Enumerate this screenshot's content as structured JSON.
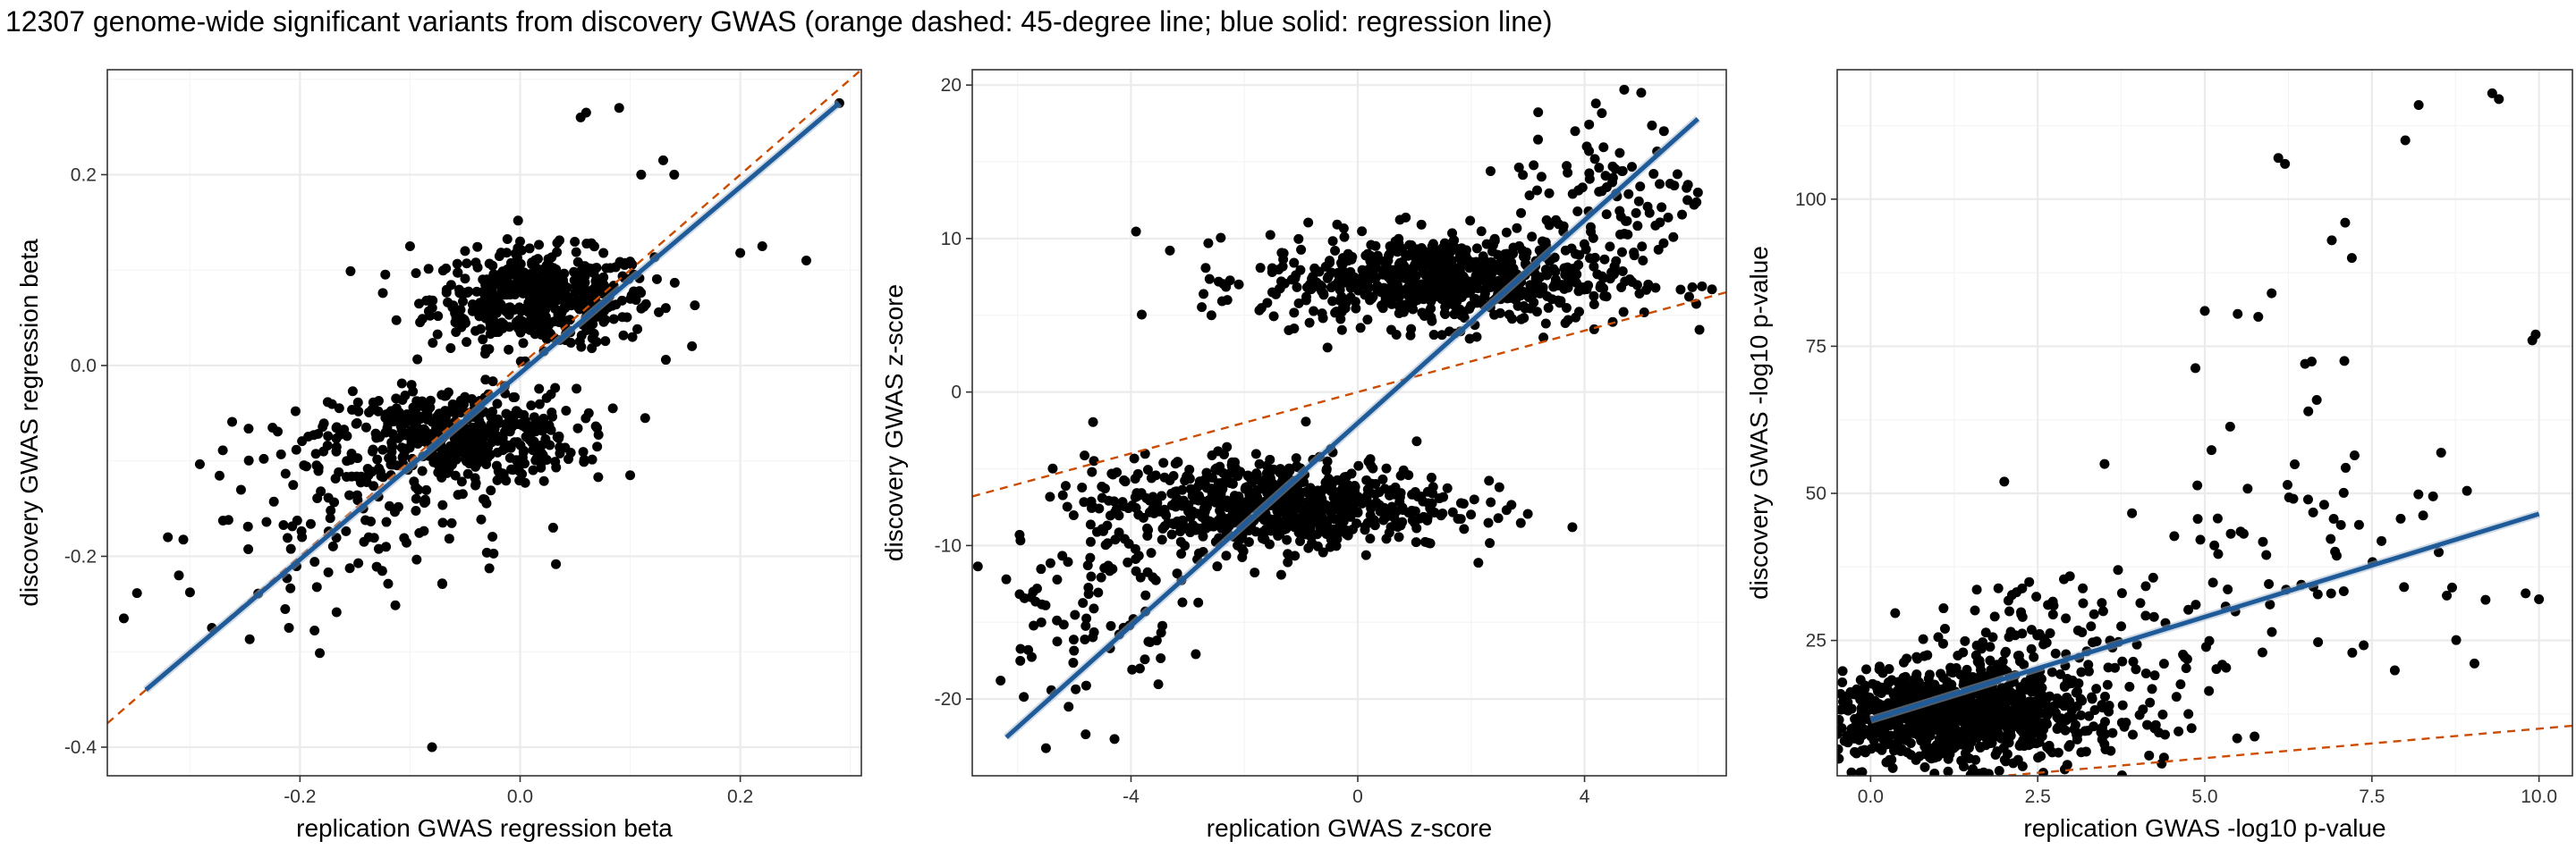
{
  "title": "12307 genome-wide significant variants from discovery GWAS (orange dashed: 45-degree line; blue solid: regression line)",
  "colors": {
    "points": "#000000",
    "reference_line": "#cc4c02",
    "regression_line": "#1f5a99",
    "grid_major": "#ebebeb",
    "grid_minor": "#f4f4f4",
    "panel_border": "#333333"
  },
  "chart_data": [
    {
      "type": "scatter",
      "xlabel": "replication GWAS regression beta",
      "ylabel": "discovery GWAS regression beta",
      "xlim": [
        -0.375,
        0.31
      ],
      "ylim": [
        -0.43,
        0.31
      ],
      "xticks": [
        -0.2,
        0.0,
        0.2
      ],
      "xtick_labels": [
        "-0.2",
        "0.0",
        "0.2"
      ],
      "yticks": [
        -0.4,
        -0.2,
        0.0,
        0.2
      ],
      "ytick_labels": [
        "-0.4",
        "-0.2",
        "0.0",
        "0.2"
      ],
      "grid": true,
      "reference_line": {
        "slope": 1,
        "intercept": 0
      },
      "regression_line": {
        "x": [
          -0.34,
          0.29
        ],
        "y": [
          -0.34,
          0.275
        ]
      },
      "clusters": [
        {
          "cx": 0.02,
          "cy": 0.07,
          "sx": 0.05,
          "sy": 0.025,
          "n": 500
        },
        {
          "cx": -0.06,
          "cy": -0.075,
          "sx": 0.055,
          "sy": 0.025,
          "n": 500
        },
        {
          "cx": -0.15,
          "cy": -0.16,
          "sx": 0.07,
          "sy": 0.045,
          "n": 120
        }
      ],
      "points": [
        [
          0.06,
          0.265
        ],
        [
          0.09,
          0.27
        ],
        [
          0.055,
          0.26
        ],
        [
          0.13,
          0.215
        ],
        [
          0.14,
          0.2
        ],
        [
          0.11,
          0.2
        ],
        [
          0.26,
          0.11
        ],
        [
          0.22,
          0.125
        ],
        [
          0.2,
          0.118
        ],
        [
          0.29,
          0.275
        ],
        [
          -0.36,
          -0.265
        ],
        [
          -0.31,
          -0.22
        ],
        [
          -0.32,
          -0.18
        ],
        [
          -0.28,
          -0.275
        ],
        [
          -0.21,
          -0.275
        ],
        [
          -0.08,
          -0.4
        ],
        [
          0.1,
          -0.115
        ],
        [
          0.07,
          -0.085
        ],
        [
          0.03,
          -0.17
        ],
        [
          -0.1,
          0.125
        ],
        [
          -0.05,
          0.12
        ],
        [
          0.0,
          0.13
        ]
      ]
    },
    {
      "type": "scatter",
      "xlabel": "replication GWAS z-score",
      "ylabel": "discovery GWAS z-score",
      "xlim": [
        -6.8,
        6.5
      ],
      "ylim": [
        -25,
        21
      ],
      "xticks": [
        -4,
        0,
        4
      ],
      "xtick_labels": [
        "-4",
        "0",
        "4"
      ],
      "yticks": [
        -20,
        -10,
        0,
        10,
        20
      ],
      "ytick_labels": [
        "-20",
        "-10",
        "0",
        "10",
        "20"
      ],
      "grid": true,
      "reference_line": {
        "slope": 1,
        "intercept": 0
      },
      "regression_line": {
        "x": [
          -6.2,
          6.0
        ],
        "y": [
          -22.5,
          17.8
        ]
      },
      "clusters": [
        {
          "cx": 1.5,
          "cy": 7.3,
          "sx": 1.6,
          "sy": 1.5,
          "n": 700
        },
        {
          "cx": -1.5,
          "cy": -7.3,
          "sx": 1.6,
          "sy": 1.5,
          "n": 700
        },
        {
          "cx": -4.8,
          "cy": -13.5,
          "sx": 0.8,
          "sy": 3.0,
          "n": 90
        },
        {
          "cx": 4.5,
          "cy": 13.0,
          "sx": 0.9,
          "sy": 2.5,
          "n": 90
        }
      ],
      "points": [
        [
          -6.3,
          -18.8
        ],
        [
          -6.2,
          -12.2
        ],
        [
          -5.5,
          -23.2
        ],
        [
          -4.8,
          -22.3
        ],
        [
          -5.1,
          -20.5
        ],
        [
          4.2,
          18.8
        ],
        [
          4.7,
          19.7
        ],
        [
          5.0,
          19.5
        ],
        [
          6.0,
          13.0
        ],
        [
          5.8,
          13.3
        ],
        [
          5.4,
          17.0
        ],
        [
          -2.3,
          6.0
        ]
      ]
    },
    {
      "type": "scatter",
      "xlabel": "replication GWAS -log10 p-value",
      "ylabel": "discovery GWAS -log10 p-value",
      "xlim": [
        -0.5,
        10.5
      ],
      "ylim": [
        2,
        122
      ],
      "xticks": [
        0.0,
        2.5,
        5.0,
        7.5,
        10.0
      ],
      "xtick_labels": [
        "0.0",
        "2.5",
        "5.0",
        "7.5",
        "10.0"
      ],
      "yticks": [
        25,
        50,
        75,
        100
      ],
      "ytick_labels": [
        "25",
        "50",
        "75",
        "100"
      ],
      "grid": true,
      "reference_line": {
        "slope": 1,
        "intercept": 0
      },
      "regression_line": {
        "x": [
          0.0,
          10.0
        ],
        "y": [
          11.5,
          46.5
        ]
      },
      "clusters": [
        {
          "cx": 1.2,
          "cy": 12.0,
          "sx": 1.0,
          "sy": 4.0,
          "n": 900
        },
        {
          "cx": 3.0,
          "cy": 20.0,
          "sx": 1.2,
          "sy": 8.0,
          "n": 200
        },
        {
          "cx": 6.5,
          "cy": 45.0,
          "sx": 1.2,
          "sy": 15.0,
          "n": 70
        }
      ],
      "points": [
        [
          9.3,
          118
        ],
        [
          9.4,
          117
        ],
        [
          8.2,
          116
        ],
        [
          8.0,
          110
        ],
        [
          6.1,
          107
        ],
        [
          6.2,
          106
        ],
        [
          7.1,
          96
        ],
        [
          6.9,
          93
        ],
        [
          7.2,
          90
        ],
        [
          9.95,
          77
        ],
        [
          9.9,
          76
        ],
        [
          9.8,
          33
        ],
        [
          10.0,
          32
        ],
        [
          8.5,
          40
        ],
        [
          8.7,
          34
        ],
        [
          6.0,
          84
        ],
        [
          5.8,
          80
        ],
        [
          6.5,
          72
        ],
        [
          5.0,
          81
        ],
        [
          3.5,
          55
        ],
        [
          2.0,
          52
        ]
      ]
    }
  ]
}
